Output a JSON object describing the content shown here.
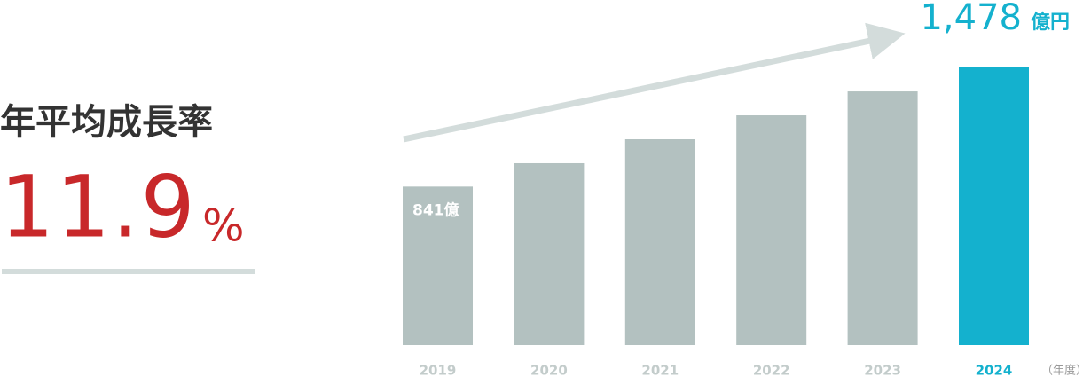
{
  "chart_data": {
    "type": "bar",
    "headline": {
      "title": "年平均成長率",
      "value": 11.9,
      "unit": "%"
    },
    "categories": [
      "2019",
      "2020",
      "2021",
      "2022",
      "2023",
      "2024"
    ],
    "values": [
      841,
      965,
      1092,
      1219,
      1346,
      1478
    ],
    "value_labels": [
      "841億",
      null,
      null,
      null,
      null,
      "1,478"
    ],
    "value_unit": "億円",
    "x_label": "（年度）",
    "colors": [
      "#b3c1c0",
      "#b3c1c0",
      "#b3c1c0",
      "#b3c1c0",
      "#b3c1c0",
      "#14b1ce"
    ]
  }
}
